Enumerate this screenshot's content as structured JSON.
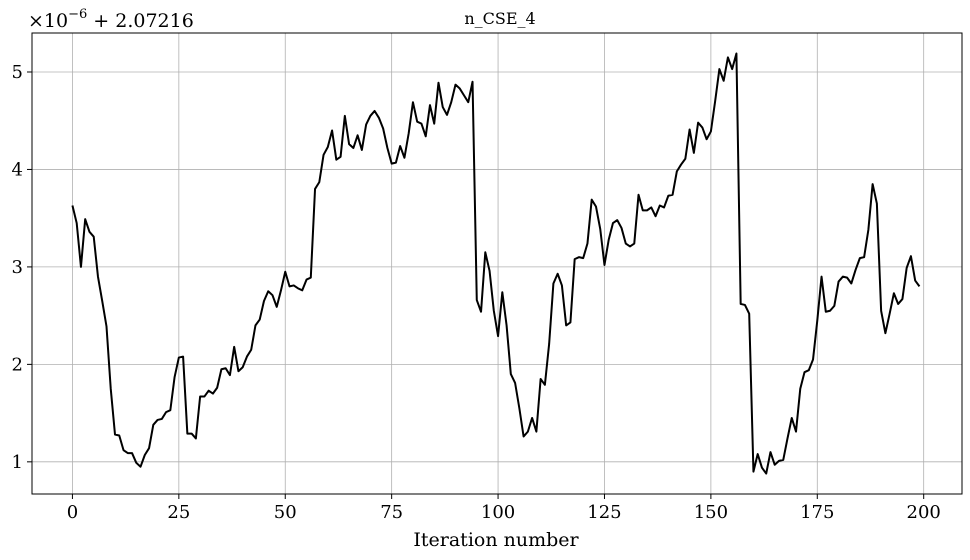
{
  "chart_data": {
    "type": "line",
    "title": "n_CSE_4",
    "xlabel": "Iteration number",
    "ylabel": "",
    "y_offset_label": {
      "multiplier_base": "×10",
      "multiplier_exponent": "−6",
      "offset": "+ 2.07216"
    },
    "xlim": [
      -9.5,
      209
    ],
    "ylim": [
      0.67,
      5.4
    ],
    "x_ticks": [
      0,
      25,
      50,
      75,
      100,
      125,
      150,
      175,
      200
    ],
    "y_ticks": [
      1,
      2,
      3,
      4,
      5
    ],
    "grid": true,
    "legend": "none",
    "line_color": "#000000",
    "series": [
      {
        "x": [
          0,
          1,
          2,
          3,
          4,
          5,
          6,
          7,
          8,
          9,
          10,
          11,
          12,
          13,
          14,
          15,
          16,
          17,
          18,
          19,
          20,
          21,
          22,
          23,
          24,
          25,
          26,
          27,
          28,
          29,
          30,
          31,
          32,
          33,
          34,
          35,
          36,
          37,
          38,
          39,
          40,
          41,
          42,
          43,
          44,
          45,
          46,
          47,
          48,
          49,
          50,
          51,
          52,
          53,
          54,
          55,
          56,
          57,
          58,
          59,
          60,
          61,
          62,
          63,
          64,
          65,
          66,
          67,
          68,
          69,
          70,
          71,
          72,
          73,
          74,
          75,
          76,
          77,
          78,
          79,
          80,
          81,
          82,
          83,
          84,
          85,
          86,
          87,
          88,
          89,
          90,
          91,
          92,
          93,
          94,
          95,
          96,
          97,
          98,
          99,
          100,
          101,
          102,
          103,
          104,
          105,
          106,
          107,
          108,
          109,
          110,
          111,
          112,
          113,
          114,
          115,
          116,
          117,
          118,
          119,
          120,
          121,
          122,
          123,
          124,
          125,
          126,
          127,
          128,
          129,
          130,
          131,
          132,
          133,
          134,
          135,
          136,
          137,
          138,
          139,
          140,
          141,
          142,
          143,
          144,
          145,
          146,
          147,
          148,
          149,
          150,
          151,
          152,
          153,
          154,
          155,
          156,
          157,
          158,
          159,
          160,
          161,
          162,
          163,
          164,
          165,
          166,
          167,
          168,
          169,
          170,
          171,
          172,
          173,
          174,
          175,
          176,
          177,
          178,
          179,
          180,
          181,
          182,
          183,
          184,
          185,
          186,
          187,
          188,
          189,
          190,
          191,
          192,
          193,
          194,
          195,
          196,
          197,
          198,
          199
        ],
        "y": [
          3.63,
          3.45,
          3.0,
          3.49,
          3.36,
          3.31,
          2.9,
          2.65,
          2.39,
          1.75,
          1.28,
          1.27,
          1.12,
          1.09,
          1.09,
          0.99,
          0.95,
          1.07,
          1.14,
          1.38,
          1.43,
          1.44,
          1.51,
          1.53,
          1.87,
          2.07,
          2.08,
          1.29,
          1.29,
          1.24,
          1.67,
          1.67,
          1.73,
          1.7,
          1.76,
          1.95,
          1.96,
          1.89,
          2.18,
          1.93,
          1.97,
          2.08,
          2.15,
          2.4,
          2.46,
          2.65,
          2.75,
          2.71,
          2.59,
          2.76,
          2.95,
          2.8,
          2.81,
          2.78,
          2.76,
          2.87,
          2.89,
          3.8,
          3.87,
          4.15,
          4.23,
          4.4,
          4.1,
          4.13,
          4.55,
          4.26,
          4.22,
          4.35,
          4.2,
          4.46,
          4.55,
          4.6,
          4.53,
          4.42,
          4.22,
          4.06,
          4.07,
          4.24,
          4.12,
          4.37,
          4.69,
          4.49,
          4.47,
          4.34,
          4.66,
          4.47,
          4.89,
          4.64,
          4.56,
          4.69,
          4.87,
          4.83,
          4.76,
          4.69,
          4.9,
          2.66,
          2.54,
          3.15,
          2.96,
          2.55,
          2.29,
          2.74,
          2.4,
          1.9,
          1.81,
          1.55,
          1.26,
          1.31,
          1.45,
          1.31,
          1.85,
          1.79,
          2.21,
          2.83,
          2.93,
          2.81,
          2.4,
          2.43,
          3.08,
          3.1,
          3.09,
          3.24,
          3.69,
          3.62,
          3.39,
          3.02,
          3.28,
          3.45,
          3.48,
          3.4,
          3.24,
          3.21,
          3.24,
          3.74,
          3.58,
          3.58,
          3.61,
          3.52,
          3.63,
          3.61,
          3.73,
          3.74,
          3.98,
          4.05,
          4.11,
          4.41,
          4.17,
          4.48,
          4.43,
          4.31,
          4.39,
          4.7,
          5.03,
          4.91,
          5.15,
          5.03,
          5.19,
          2.62,
          2.61,
          2.52,
          0.9,
          1.08,
          0.94,
          0.88,
          1.1,
          0.97,
          1.01,
          1.02,
          1.24,
          1.45,
          1.31,
          1.75,
          1.92,
          1.94,
          2.05,
          2.45,
          2.9,
          2.54,
          2.55,
          2.6,
          2.85,
          2.9,
          2.89,
          2.83,
          2.97,
          3.09,
          3.1,
          3.38,
          3.85,
          3.65,
          2.55,
          2.32,
          2.52,
          2.73,
          2.62,
          2.67,
          2.99,
          3.11,
          2.86,
          2.8
        ]
      }
    ]
  }
}
